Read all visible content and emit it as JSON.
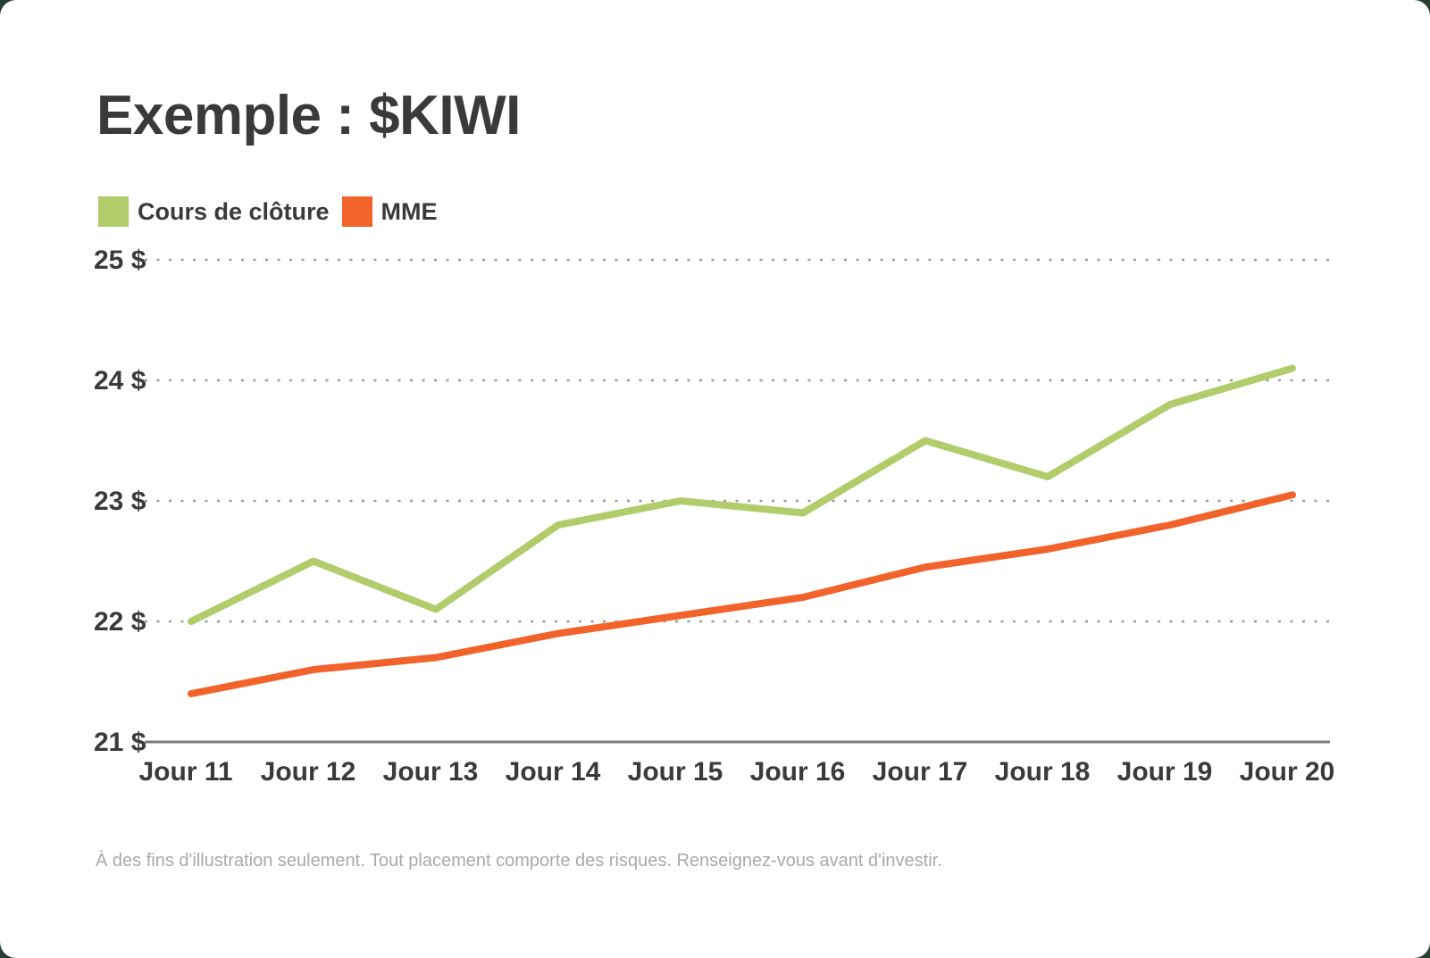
{
  "page": {
    "title": "Exemple : $KIWI",
    "footnote": "À des fins d'illustration seulement. Tout placement comporte des risques. Renseignez-vous avant d'investir."
  },
  "colors": {
    "close_price": "#b2cb6b",
    "mme": "#f2632c",
    "text_dark": "#3a3a3a",
    "gridline": "#9b9b9b",
    "baseline": "#7c7c7c",
    "footnote_gray": "#a9a9a9",
    "card_background": "#ffffff",
    "outside_background": "#263f33"
  },
  "legend": {
    "items": [
      {
        "label": "Cours de clôture",
        "color": "#b2cb6b"
      },
      {
        "label": "MME",
        "color": "#f2632c"
      }
    ]
  },
  "chart_data": {
    "type": "line",
    "title": "Exemple : $KIWI",
    "categories": [
      "Jour 11",
      "Jour 12",
      "Jour 13",
      "Jour 14",
      "Jour 15",
      "Jour 16",
      "Jour 17",
      "Jour 18",
      "Jour 19",
      "Jour 20"
    ],
    "series": [
      {
        "name": "Cours de clôture",
        "color": "#b2cb6b",
        "values": [
          22.0,
          22.5,
          22.1,
          22.8,
          23.0,
          22.9,
          23.5,
          23.2,
          23.8,
          24.1
        ]
      },
      {
        "name": "MME",
        "color": "#f2632c",
        "values": [
          21.4,
          21.6,
          21.7,
          21.9,
          22.05,
          22.2,
          22.45,
          22.6,
          22.8,
          23.05
        ]
      }
    ],
    "xlabel": "",
    "ylabel": "",
    "ylim": [
      21,
      25
    ],
    "yticks": [
      {
        "value": 25,
        "label": "25 $"
      },
      {
        "value": 24,
        "label": "24 $"
      },
      {
        "value": 23,
        "label": "23 $"
      },
      {
        "value": 22,
        "label": "22 $"
      },
      {
        "value": 21,
        "label": "21 $"
      }
    ],
    "grid": "horizontal-dotted",
    "baseline_value": 21,
    "legend_position": "top-left"
  }
}
